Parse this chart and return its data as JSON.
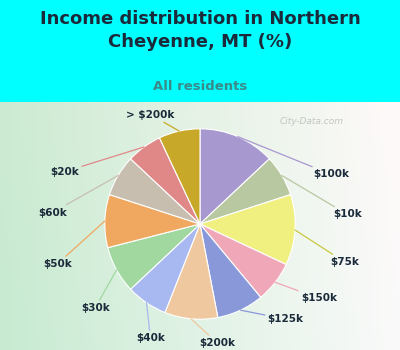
{
  "title": "Income distribution in Northern\nCheyenne, MT (%)",
  "subtitle": "All residents",
  "labels": [
    "$100k",
    "$10k",
    "$75k",
    "$150k",
    "$125k",
    "$200k",
    "$40k",
    "$30k",
    "$50k",
    "$60k",
    "$20k",
    "> $200k"
  ],
  "values": [
    13,
    7,
    12,
    7,
    8,
    9,
    7,
    8,
    9,
    7,
    6,
    7
  ],
  "colors": [
    "#a898d0",
    "#b8c8a0",
    "#f0f080",
    "#f0a8b8",
    "#8898d8",
    "#f0c8a0",
    "#a8b8f0",
    "#a0d8a0",
    "#f0a860",
    "#c8beb0",
    "#e08888",
    "#c8a828"
  ],
  "bg_top": "#00ffff",
  "chart_bg_tl": "#c8e8d8",
  "chart_bg_tr": "#e8f8f8",
  "chart_bg_br": "#c8e8c8",
  "title_color": "#1a2a3a",
  "subtitle_color": "#3a8a8a",
  "label_color": "#1a2a3a",
  "watermark": "City-Data.com"
}
